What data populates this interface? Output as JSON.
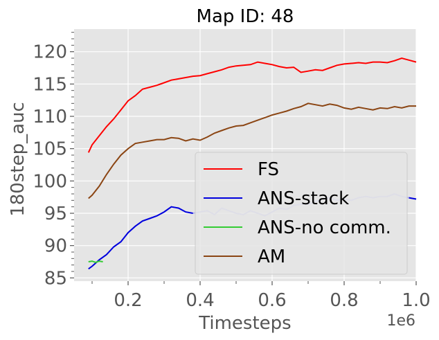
{
  "chart_data": {
    "type": "line",
    "title": "Map ID: 48",
    "xlabel": "Timesteps",
    "ylabel": "180step_auc",
    "x_offset_label": "1e6",
    "xlim": [
      0.05,
      1.0
    ],
    "ylim": [
      84.5,
      123.5
    ],
    "x_ticks": [
      0.2,
      0.4,
      0.6,
      0.8,
      1.0
    ],
    "x_tick_labels": [
      "0.2",
      "0.4",
      "0.6",
      "0.8",
      "1.0"
    ],
    "y_ticks": [
      85,
      90,
      95,
      100,
      105,
      110,
      115,
      120
    ],
    "y_tick_labels": [
      "85",
      "90",
      "95",
      "100",
      "105",
      "110",
      "115",
      "120"
    ],
    "grid": true,
    "legend_position": "lower-right",
    "colors": {
      "background": "#e5e5e5",
      "grid": "#ffffff",
      "FS": "#ff0000",
      "ANS-stack": "#0000dd",
      "ANS-stack-faded": "#b3b3ee",
      "ANS-no comm.": "#33cc33",
      "AM": "#8b4513"
    },
    "series": [
      {
        "name": "FS",
        "x": [
          0.09,
          0.1,
          0.12,
          0.14,
          0.16,
          0.18,
          0.2,
          0.22,
          0.24,
          0.26,
          0.28,
          0.3,
          0.32,
          0.34,
          0.36,
          0.38,
          0.4,
          0.42,
          0.44,
          0.46,
          0.48,
          0.5,
          0.52,
          0.54,
          0.56,
          0.58,
          0.6,
          0.62,
          0.64,
          0.66,
          0.68,
          0.7,
          0.72,
          0.74,
          0.76,
          0.78,
          0.8,
          0.82,
          0.84,
          0.86,
          0.88,
          0.9,
          0.92,
          0.94,
          0.96,
          0.98,
          1.0
        ],
        "values": [
          104.4,
          105.6,
          107.0,
          108.4,
          109.6,
          111.0,
          112.4,
          113.2,
          114.2,
          114.5,
          114.8,
          115.2,
          115.6,
          115.8,
          116.0,
          116.2,
          116.3,
          116.6,
          116.9,
          117.2,
          117.6,
          117.8,
          117.9,
          118.0,
          118.4,
          118.2,
          118.0,
          117.7,
          117.5,
          117.6,
          116.8,
          117.0,
          117.2,
          117.1,
          117.5,
          117.9,
          118.1,
          118.2,
          118.3,
          118.2,
          118.4,
          118.4,
          118.3,
          118.6,
          119.0,
          118.7,
          118.4
        ]
      },
      {
        "name": "ANS-stack",
        "x": [
          0.09,
          0.1,
          0.12,
          0.14,
          0.16,
          0.18,
          0.2,
          0.22,
          0.24,
          0.26,
          0.28,
          0.3,
          0.32,
          0.34,
          0.36,
          0.38,
          0.4,
          0.42,
          0.44,
          0.46,
          0.48,
          0.5,
          0.52,
          0.54,
          0.56,
          0.58,
          0.6,
          0.62,
          0.64,
          0.66,
          0.68,
          0.7,
          0.72,
          0.74,
          0.76,
          0.78,
          0.8,
          0.82,
          0.84,
          0.86,
          0.88,
          0.9,
          0.92,
          0.94,
          0.96,
          0.98,
          1.0
        ],
        "values": [
          86.4,
          86.8,
          87.8,
          88.6,
          89.8,
          90.6,
          92.0,
          93.0,
          93.8,
          94.2,
          94.6,
          95.2,
          96.0,
          95.8,
          95.2,
          95.0,
          95.2,
          95.4,
          94.8,
          95.8,
          95.4,
          95.0,
          94.8,
          95.4,
          95.0,
          94.6,
          95.2,
          95.8,
          95.6,
          96.2,
          96.4,
          96.4,
          96.8,
          97.2,
          97.4,
          97.0,
          97.2,
          97.0,
          97.4,
          97.6,
          97.4,
          97.6,
          97.6,
          98.0,
          97.6,
          97.4,
          97.2
        ]
      },
      {
        "name": "ANS-no comm.",
        "x": [
          0.09,
          0.1,
          0.11,
          0.12,
          0.13
        ],
        "values": [
          87.5,
          87.6,
          87.4,
          87.6,
          87.5
        ]
      },
      {
        "name": "AM",
        "x": [
          0.09,
          0.1,
          0.12,
          0.14,
          0.16,
          0.18,
          0.2,
          0.22,
          0.24,
          0.26,
          0.28,
          0.3,
          0.32,
          0.34,
          0.36,
          0.38,
          0.4,
          0.42,
          0.44,
          0.46,
          0.48,
          0.5,
          0.52,
          0.54,
          0.56,
          0.58,
          0.6,
          0.62,
          0.64,
          0.66,
          0.68,
          0.7,
          0.72,
          0.74,
          0.76,
          0.78,
          0.8,
          0.82,
          0.84,
          0.86,
          0.88,
          0.9,
          0.92,
          0.94,
          0.96,
          0.98,
          1.0
        ],
        "values": [
          97.3,
          97.8,
          99.2,
          101.0,
          102.6,
          104.0,
          105.0,
          105.8,
          106.0,
          106.2,
          106.4,
          106.4,
          106.7,
          106.6,
          106.2,
          106.5,
          106.3,
          106.8,
          107.4,
          107.8,
          108.2,
          108.5,
          108.6,
          109.0,
          109.4,
          109.8,
          110.2,
          110.5,
          110.8,
          111.2,
          111.5,
          112.0,
          111.8,
          111.6,
          111.9,
          111.7,
          111.3,
          111.1,
          111.4,
          111.2,
          111.0,
          111.3,
          111.2,
          111.5,
          111.3,
          111.6,
          111.6
        ]
      }
    ]
  }
}
